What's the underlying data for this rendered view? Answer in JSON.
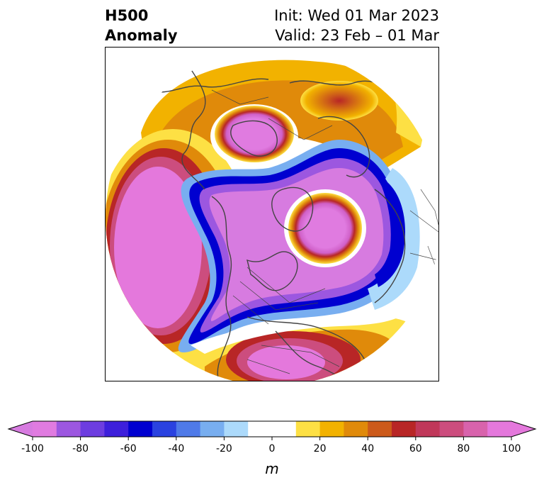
{
  "title": {
    "field": "H500",
    "type": "Anomaly",
    "init": "Init: Wed 01 Mar 2023",
    "valid": "Valid: 23 Feb – 01 Mar"
  },
  "map": {
    "projection": "polar stereographic",
    "region": "Northern Hemisphere",
    "colors": {
      "coastline": "#444444",
      "neutral": "#ffffff"
    }
  },
  "colorbar": {
    "unit": "m",
    "ticks": [
      "-100",
      "-80",
      "-60",
      "-40",
      "-20",
      "0",
      "20",
      "40",
      "60",
      "80",
      "100"
    ],
    "tick_values": [
      -100,
      -80,
      -60,
      -40,
      -20,
      0,
      20,
      40,
      60,
      80,
      100
    ],
    "min": -100,
    "max": 100,
    "step": 10,
    "extend": "both",
    "colors": [
      "#e07be0",
      "#9c57e0",
      "#6d3de0",
      "#3d1fdb",
      "#0000d0",
      "#2a42e0",
      "#4f7ae8",
      "#78aef0",
      "#acdafb",
      "#ffffff",
      "#ffffff",
      "#fde044",
      "#f2b200",
      "#e08a0a",
      "#cc5a1a",
      "#b82626",
      "#c0385a",
      "#cc4d7e",
      "#d863ac",
      "#e478dc"
    ],
    "under_color": "#d77be0",
    "over_color": "#e478dc"
  }
}
